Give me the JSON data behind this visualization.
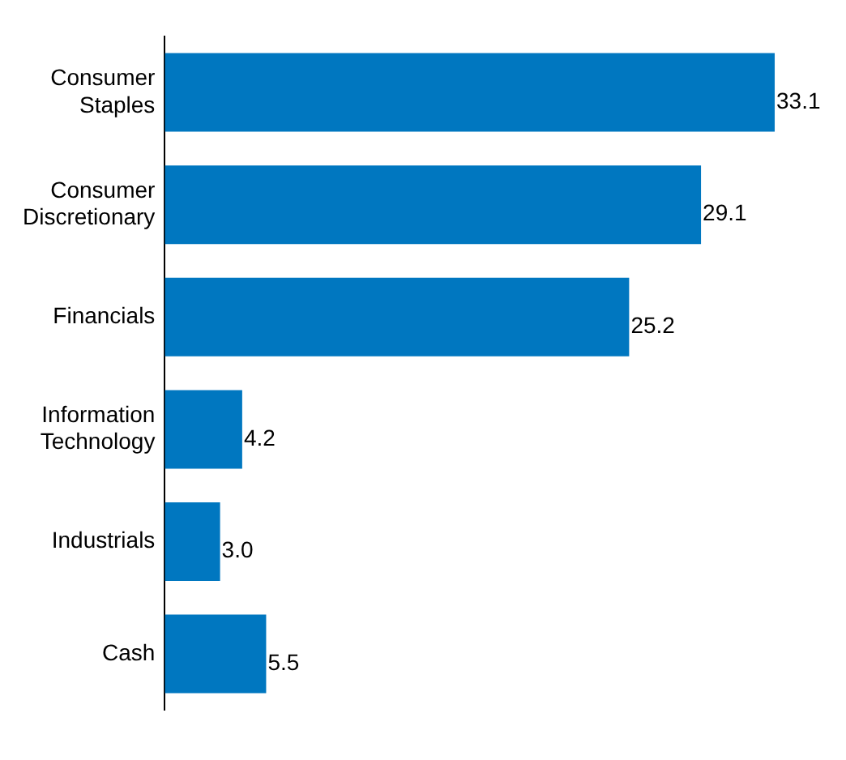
{
  "chart_data": {
    "type": "bar",
    "orientation": "horizontal",
    "categories": [
      "Consumer Staples",
      "Consumer Discretionary",
      "Financials",
      "Information Technology",
      "Industrials",
      "Cash"
    ],
    "values": [
      33.1,
      29.1,
      25.2,
      4.2,
      3.0,
      5.5
    ],
    "value_labels": [
      "33.1",
      "29.1",
      "25.2",
      "4.2",
      "3.0",
      "5.5"
    ],
    "color": "#0077c0",
    "legend": false
  }
}
